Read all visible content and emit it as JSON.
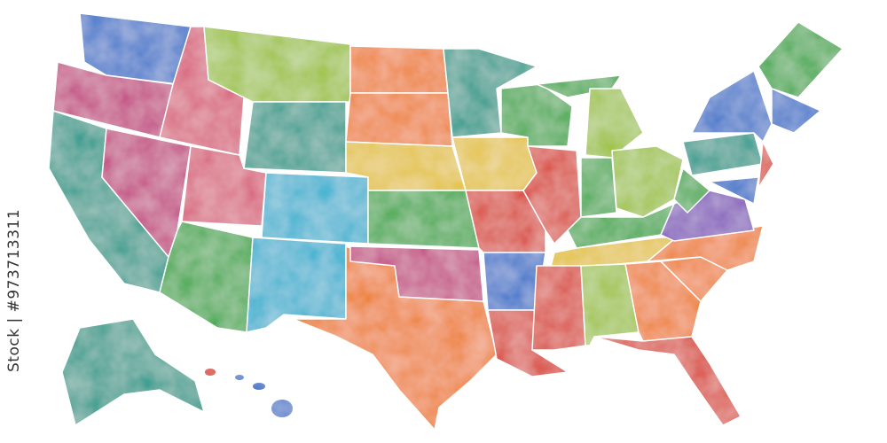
{
  "watermark": {
    "text": "Stock | #973713311"
  },
  "map": {
    "style": "watercolor",
    "border_color": "#ffffff",
    "palette": {
      "blue": "#2f6fc9",
      "purple": "#7b4bb8",
      "magenta": "#c2407f",
      "pink": "#d8607a",
      "red": "#d9402f",
      "orange": "#ee7d24",
      "yellow": "#e3c12b",
      "lime": "#9cc23a",
      "green": "#3ea84a",
      "teal": "#1f9a8a",
      "cyan": "#2ab0d0"
    }
  }
}
